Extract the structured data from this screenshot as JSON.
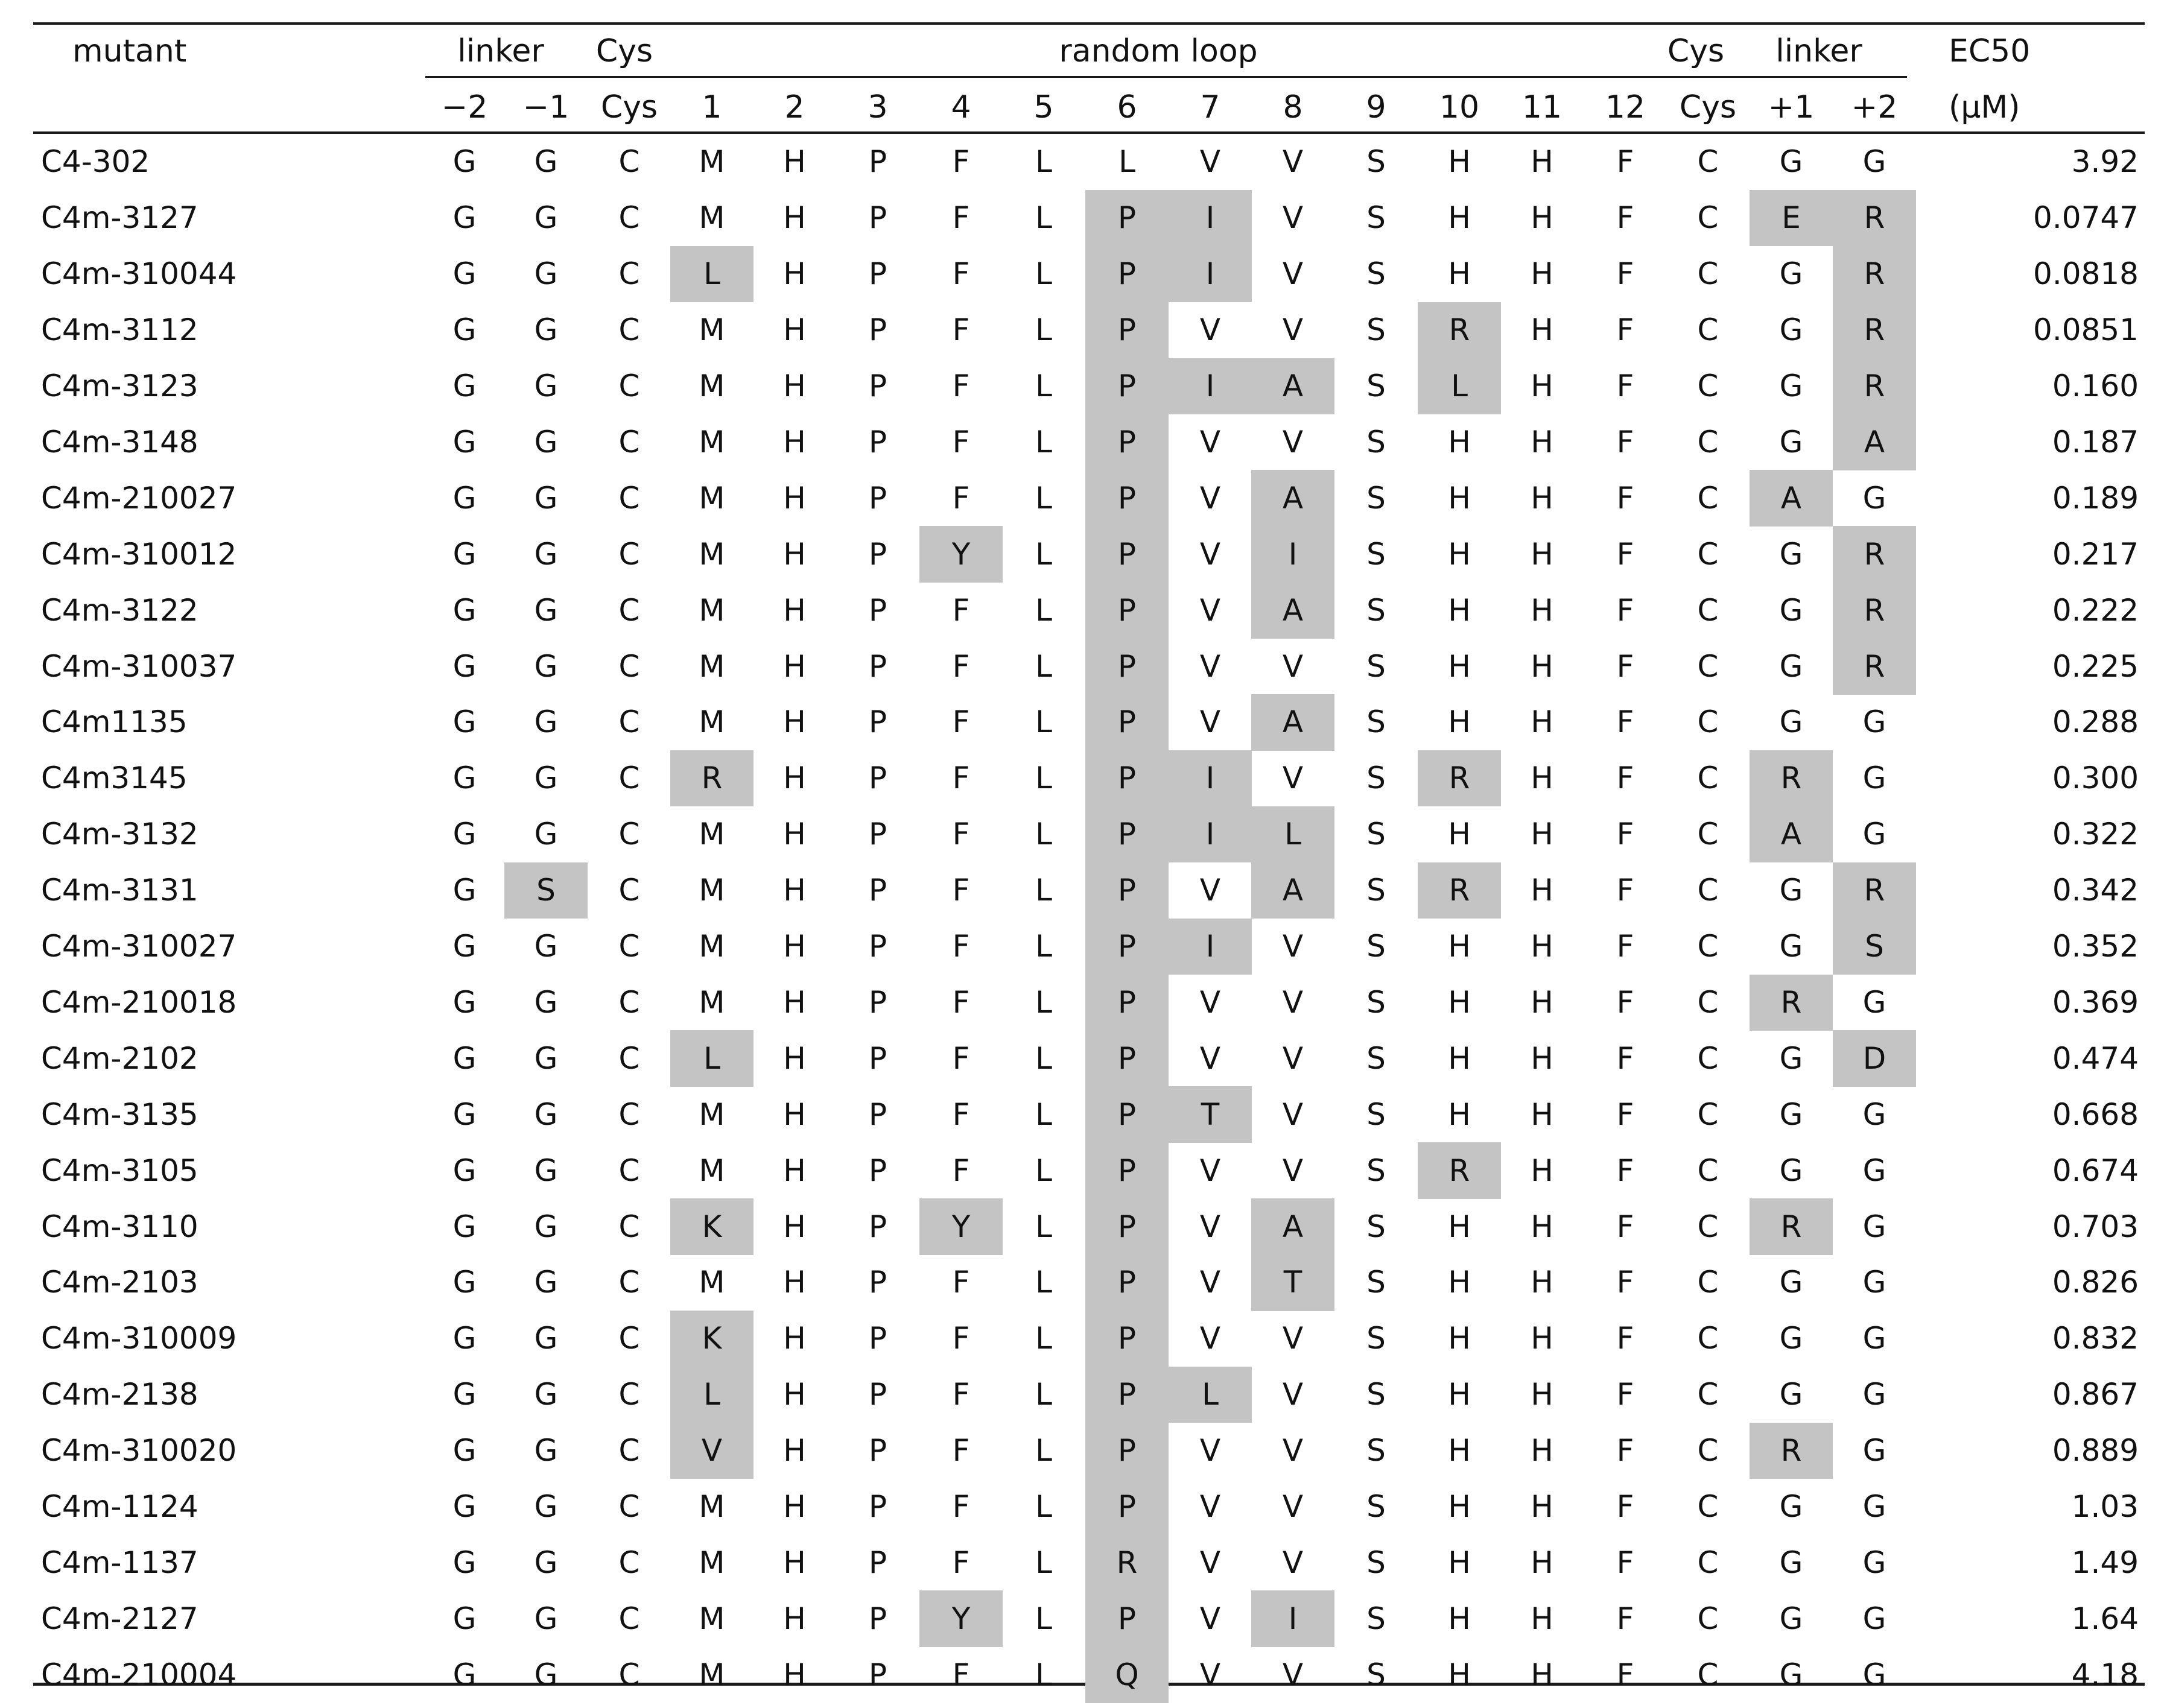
{
  "header": {
    "mutant": "mutant",
    "linker_left": "linker",
    "cys_left": "Cys",
    "random_loop": "random loop",
    "cys_right": "Cys",
    "linker_right": "linker",
    "ec50": "EC50",
    "ec50_unit": "(μM)",
    "positions": [
      "−2",
      "−1",
      "Cys",
      "1",
      "2",
      "3",
      "4",
      "5",
      "6",
      "7",
      "8",
      "9",
      "10",
      "11",
      "12",
      "Cys",
      "+1",
      "+2"
    ]
  },
  "colors": {
    "highlight": "#c4c4c4",
    "rule": "#1a1a1a"
  },
  "rows": [
    {
      "mutant": "C4-302",
      "residues": [
        "G",
        "G",
        "C",
        "M",
        "H",
        "P",
        "F",
        "L",
        "L",
        "V",
        "V",
        "S",
        "H",
        "H",
        "F",
        "C",
        "G",
        "G"
      ],
      "ec50": "3.92",
      "highlight": []
    },
    {
      "mutant": "C4m-3127",
      "residues": [
        "G",
        "G",
        "C",
        "M",
        "H",
        "P",
        "F",
        "L",
        "P",
        "I",
        "V",
        "S",
        "H",
        "H",
        "F",
        "C",
        "E",
        "R"
      ],
      "ec50": "0.0747",
      "highlight": [
        8,
        9,
        16,
        17
      ]
    },
    {
      "mutant": "C4m-310044",
      "residues": [
        "G",
        "G",
        "C",
        "L",
        "H",
        "P",
        "F",
        "L",
        "P",
        "I",
        "V",
        "S",
        "H",
        "H",
        "F",
        "C",
        "G",
        "R"
      ],
      "ec50": "0.0818",
      "highlight": [
        3,
        8,
        9,
        17
      ]
    },
    {
      "mutant": "C4m-3112",
      "residues": [
        "G",
        "G",
        "C",
        "M",
        "H",
        "P",
        "F",
        "L",
        "P",
        "V",
        "V",
        "S",
        "R",
        "H",
        "F",
        "C",
        "G",
        "R"
      ],
      "ec50": "0.0851",
      "highlight": [
        8,
        12,
        17
      ]
    },
    {
      "mutant": "C4m-3123",
      "residues": [
        "G",
        "G",
        "C",
        "M",
        "H",
        "P",
        "F",
        "L",
        "P",
        "I",
        "A",
        "S",
        "L",
        "H",
        "F",
        "C",
        "G",
        "R"
      ],
      "ec50": "0.160",
      "highlight": [
        8,
        9,
        10,
        12,
        17
      ]
    },
    {
      "mutant": "C4m-3148",
      "residues": [
        "G",
        "G",
        "C",
        "M",
        "H",
        "P",
        "F",
        "L",
        "P",
        "V",
        "V",
        "S",
        "H",
        "H",
        "F",
        "C",
        "G",
        "A"
      ],
      "ec50": "0.187",
      "highlight": [
        8,
        17
      ]
    },
    {
      "mutant": "C4m-210027",
      "residues": [
        "G",
        "G",
        "C",
        "M",
        "H",
        "P",
        "F",
        "L",
        "P",
        "V",
        "A",
        "S",
        "H",
        "H",
        "F",
        "C",
        "A",
        "G"
      ],
      "ec50": "0.189",
      "highlight": [
        8,
        10,
        16
      ]
    },
    {
      "mutant": "C4m-310012",
      "residues": [
        "G",
        "G",
        "C",
        "M",
        "H",
        "P",
        "Y",
        "L",
        "P",
        "V",
        "I",
        "S",
        "H",
        "H",
        "F",
        "C",
        "G",
        "R"
      ],
      "ec50": "0.217",
      "highlight": [
        6,
        8,
        10,
        17
      ]
    },
    {
      "mutant": "C4m-3122",
      "residues": [
        "G",
        "G",
        "C",
        "M",
        "H",
        "P",
        "F",
        "L",
        "P",
        "V",
        "A",
        "S",
        "H",
        "H",
        "F",
        "C",
        "G",
        "R"
      ],
      "ec50": "0.222",
      "highlight": [
        8,
        10,
        17
      ]
    },
    {
      "mutant": "C4m-310037",
      "residues": [
        "G",
        "G",
        "C",
        "M",
        "H",
        "P",
        "F",
        "L",
        "P",
        "V",
        "V",
        "S",
        "H",
        "H",
        "F",
        "C",
        "G",
        "R"
      ],
      "ec50": "0.225",
      "highlight": [
        8,
        17
      ]
    },
    {
      "mutant": "C4m1135",
      "residues": [
        "G",
        "G",
        "C",
        "M",
        "H",
        "P",
        "F",
        "L",
        "P",
        "V",
        "A",
        "S",
        "H",
        "H",
        "F",
        "C",
        "G",
        "G"
      ],
      "ec50": "0.288",
      "highlight": [
        8,
        10
      ]
    },
    {
      "mutant": "C4m3145",
      "residues": [
        "G",
        "G",
        "C",
        "R",
        "H",
        "P",
        "F",
        "L",
        "P",
        "I",
        "V",
        "S",
        "R",
        "H",
        "F",
        "C",
        "R",
        "G"
      ],
      "ec50": "0.300",
      "highlight": [
        3,
        8,
        9,
        12,
        16
      ]
    },
    {
      "mutant": "C4m-3132",
      "residues": [
        "G",
        "G",
        "C",
        "M",
        "H",
        "P",
        "F",
        "L",
        "P",
        "I",
        "L",
        "S",
        "H",
        "H",
        "F",
        "C",
        "A",
        "G"
      ],
      "ec50": "0.322",
      "highlight": [
        8,
        9,
        10,
        16
      ]
    },
    {
      "mutant": "C4m-3131",
      "residues": [
        "G",
        "S",
        "C",
        "M",
        "H",
        "P",
        "F",
        "L",
        "P",
        "V",
        "A",
        "S",
        "R",
        "H",
        "F",
        "C",
        "G",
        "R"
      ],
      "ec50": "0.342",
      "highlight": [
        1,
        8,
        10,
        12,
        17
      ]
    },
    {
      "mutant": "C4m-310027",
      "residues": [
        "G",
        "G",
        "C",
        "M",
        "H",
        "P",
        "F",
        "L",
        "P",
        "I",
        "V",
        "S",
        "H",
        "H",
        "F",
        "C",
        "G",
        "S"
      ],
      "ec50": "0.352",
      "highlight": [
        8,
        9,
        17
      ]
    },
    {
      "mutant": "C4m-210018",
      "residues": [
        "G",
        "G",
        "C",
        "M",
        "H",
        "P",
        "F",
        "L",
        "P",
        "V",
        "V",
        "S",
        "H",
        "H",
        "F",
        "C",
        "R",
        "G"
      ],
      "ec50": "0.369",
      "highlight": [
        8,
        16
      ]
    },
    {
      "mutant": "C4m-2102",
      "residues": [
        "G",
        "G",
        "C",
        "L",
        "H",
        "P",
        "F",
        "L",
        "P",
        "V",
        "V",
        "S",
        "H",
        "H",
        "F",
        "C",
        "G",
        "D"
      ],
      "ec50": "0.474",
      "highlight": [
        3,
        8,
        17
      ]
    },
    {
      "mutant": "C4m-3135",
      "residues": [
        "G",
        "G",
        "C",
        "M",
        "H",
        "P",
        "F",
        "L",
        "P",
        "T",
        "V",
        "S",
        "H",
        "H",
        "F",
        "C",
        "G",
        "G"
      ],
      "ec50": "0.668",
      "highlight": [
        8,
        9
      ]
    },
    {
      "mutant": "C4m-3105",
      "residues": [
        "G",
        "G",
        "C",
        "M",
        "H",
        "P",
        "F",
        "L",
        "P",
        "V",
        "V",
        "S",
        "R",
        "H",
        "F",
        "C",
        "G",
        "G"
      ],
      "ec50": "0.674",
      "highlight": [
        8,
        12
      ]
    },
    {
      "mutant": "C4m-3110",
      "residues": [
        "G",
        "G",
        "C",
        "K",
        "H",
        "P",
        "Y",
        "L",
        "P",
        "V",
        "A",
        "S",
        "H",
        "H",
        "F",
        "C",
        "R",
        "G"
      ],
      "ec50": "0.703",
      "highlight": [
        3,
        6,
        8,
        10,
        16
      ]
    },
    {
      "mutant": "C4m-2103",
      "residues": [
        "G",
        "G",
        "C",
        "M",
        "H",
        "P",
        "F",
        "L",
        "P",
        "V",
        "T",
        "S",
        "H",
        "H",
        "F",
        "C",
        "G",
        "G"
      ],
      "ec50": "0.826",
      "highlight": [
        8,
        10
      ]
    },
    {
      "mutant": "C4m-310009",
      "residues": [
        "G",
        "G",
        "C",
        "K",
        "H",
        "P",
        "F",
        "L",
        "P",
        "V",
        "V",
        "S",
        "H",
        "H",
        "F",
        "C",
        "G",
        "G"
      ],
      "ec50": "0.832",
      "highlight": [
        3,
        8
      ]
    },
    {
      "mutant": "C4m-2138",
      "residues": [
        "G",
        "G",
        "C",
        "L",
        "H",
        "P",
        "F",
        "L",
        "P",
        "L",
        "V",
        "S",
        "H",
        "H",
        "F",
        "C",
        "G",
        "G"
      ],
      "ec50": "0.867",
      "highlight": [
        3,
        8,
        9
      ]
    },
    {
      "mutant": "C4m-310020",
      "residues": [
        "G",
        "G",
        "C",
        "V",
        "H",
        "P",
        "F",
        "L",
        "P",
        "V",
        "V",
        "S",
        "H",
        "H",
        "F",
        "C",
        "R",
        "G"
      ],
      "ec50": "0.889",
      "highlight": [
        3,
        8,
        16
      ]
    },
    {
      "mutant": "C4m-1124",
      "residues": [
        "G",
        "G",
        "C",
        "M",
        "H",
        "P",
        "F",
        "L",
        "P",
        "V",
        "V",
        "S",
        "H",
        "H",
        "F",
        "C",
        "G",
        "G"
      ],
      "ec50": "1.03",
      "highlight": [
        8
      ]
    },
    {
      "mutant": "C4m-1137",
      "residues": [
        "G",
        "G",
        "C",
        "M",
        "H",
        "P",
        "F",
        "L",
        "R",
        "V",
        "V",
        "S",
        "H",
        "H",
        "F",
        "C",
        "G",
        "G"
      ],
      "ec50": "1.49",
      "highlight": [
        8
      ]
    },
    {
      "mutant": "C4m-2127",
      "residues": [
        "G",
        "G",
        "C",
        "M",
        "H",
        "P",
        "Y",
        "L",
        "P",
        "V",
        "I",
        "S",
        "H",
        "H",
        "F",
        "C",
        "G",
        "G"
      ],
      "ec50": "1.64",
      "highlight": [
        6,
        8,
        10
      ]
    },
    {
      "mutant": "C4m-210004",
      "residues": [
        "G",
        "G",
        "C",
        "M",
        "H",
        "P",
        "F",
        "L",
        "Q",
        "V",
        "V",
        "S",
        "H",
        "H",
        "F",
        "C",
        "G",
        "G"
      ],
      "ec50": "4.18",
      "highlight": [
        8
      ]
    }
  ]
}
